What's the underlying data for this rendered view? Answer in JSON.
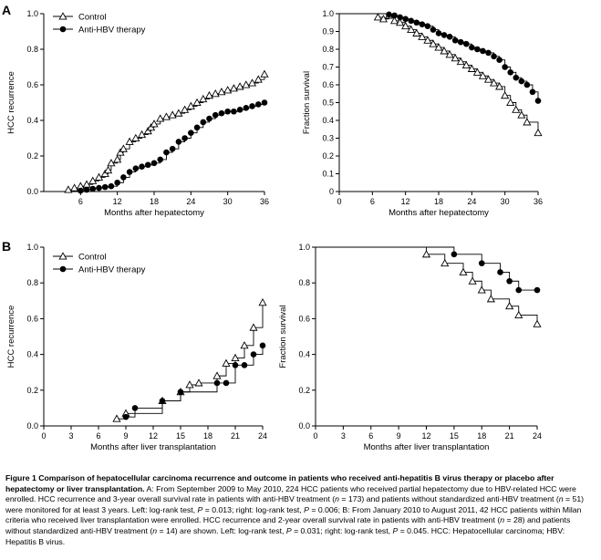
{
  "figure": {
    "panel_letters": [
      "A",
      "B"
    ],
    "caption": {
      "title": "Figure 1  Comparison of hepatocellular carcinoma recurrence and outcome in patients who received anti-hepatitis B virus therapy or placebo after hepatectomy or liver transplantation.",
      "body_html": " A: From September 2009 to May 2010, 224 HCC patients who received partial hepatectomy due to HBV-related HCC were enrolled. HCC recurrence and 3-year overall survival rate in patients with anti-HBV treatment (<i>n</i> = 173) and patients without standardized anti-HBV treatment (<i>n</i> = 51) were monitored for at least 3 years. Left: log-rank test, <i>P</i> = 0.013; right: log-rank test, <i>P</i> = 0.006; B: From January 2010 to August 2011, 42 HCC patients within Milan criteria who received liver transplantation were enrolled. HCC recurrence and 2-year overall survival rate in patients with anti-HBV treatment (<i>n</i> = 28) and patients without standardized anti-HBV treatment (<i>n</i> = 14) are shown. Left: log-rank test, <i>P</i> = 0.031; right: log-rank test, <i>P</i> = 0.045. HCC: Hepatocellular carcinoma; HBV: Hepatitis B virus."
    }
  },
  "chart_data": [
    {
      "id": "A-left",
      "type": "line",
      "step": true,
      "xlabel": "Months after hepatectomy",
      "ylabel": "HCC recurrence",
      "xlim": [
        0,
        36
      ],
      "ylim": [
        0,
        1.0
      ],
      "xticks": [
        6,
        12,
        18,
        24,
        30,
        36
      ],
      "yticks": [
        0.0,
        0.2,
        0.4,
        0.6,
        0.8,
        1.0
      ],
      "xtick_labels": [
        "6",
        "12",
        "18",
        "24",
        "30",
        "36"
      ],
      "ytick_labels": [
        "0.0",
        "0.2",
        "0.4",
        "0.6",
        "0.8",
        "1.0"
      ],
      "legend": [
        "Control",
        "Anti-HBV therapy"
      ],
      "series": [
        {
          "name": "Control",
          "marker": "open-triangle",
          "points": [
            [
              4,
              0.01
            ],
            [
              5,
              0.02
            ],
            [
              6,
              0.03
            ],
            [
              7,
              0.04
            ],
            [
              8,
              0.06
            ],
            [
              9,
              0.08
            ],
            [
              10,
              0.1
            ],
            [
              10.5,
              0.12
            ],
            [
              11,
              0.16
            ],
            [
              12,
              0.18
            ],
            [
              12.5,
              0.22
            ],
            [
              13,
              0.24
            ],
            [
              14,
              0.28
            ],
            [
              15,
              0.3
            ],
            [
              16,
              0.32
            ],
            [
              17,
              0.34
            ],
            [
              17.5,
              0.36
            ],
            [
              18,
              0.38
            ],
            [
              19,
              0.41
            ],
            [
              20,
              0.42
            ],
            [
              21,
              0.43
            ],
            [
              22,
              0.44
            ],
            [
              23,
              0.46
            ],
            [
              24,
              0.48
            ],
            [
              25,
              0.5
            ],
            [
              26,
              0.52
            ],
            [
              27,
              0.54
            ],
            [
              28,
              0.55
            ],
            [
              29,
              0.56
            ],
            [
              30,
              0.57
            ],
            [
              31,
              0.58
            ],
            [
              32,
              0.59
            ],
            [
              33,
              0.6
            ],
            [
              34,
              0.61
            ],
            [
              35,
              0.63
            ],
            [
              36,
              0.66
            ]
          ]
        },
        {
          "name": "Anti-HBV therapy",
          "marker": "filled-circle",
          "points": [
            [
              6,
              0.005
            ],
            [
              7,
              0.01
            ],
            [
              8,
              0.015
            ],
            [
              9,
              0.02
            ],
            [
              10,
              0.025
            ],
            [
              11,
              0.03
            ],
            [
              12,
              0.05
            ],
            [
              13,
              0.08
            ],
            [
              14,
              0.11
            ],
            [
              15,
              0.13
            ],
            [
              16,
              0.14
            ],
            [
              17,
              0.15
            ],
            [
              18,
              0.16
            ],
            [
              19,
              0.18
            ],
            [
              20,
              0.22
            ],
            [
              21,
              0.24
            ],
            [
              22,
              0.28
            ],
            [
              23,
              0.3
            ],
            [
              24,
              0.33
            ],
            [
              25,
              0.36
            ],
            [
              26,
              0.39
            ],
            [
              27,
              0.41
            ],
            [
              28,
              0.43
            ],
            [
              29,
              0.44
            ],
            [
              30,
              0.45
            ],
            [
              31,
              0.45
            ],
            [
              32,
              0.46
            ],
            [
              33,
              0.47
            ],
            [
              34,
              0.48
            ],
            [
              35,
              0.49
            ],
            [
              36,
              0.5
            ]
          ]
        }
      ]
    },
    {
      "id": "A-right",
      "type": "line",
      "step": true,
      "xlabel": "Months after hepatectomy",
      "ylabel": "Fraction survival",
      "xlim": [
        0,
        36
      ],
      "ylim": [
        0,
        1.0
      ],
      "xticks": [
        0,
        6,
        12,
        18,
        24,
        30,
        36
      ],
      "yticks": [
        0,
        0.1,
        0.2,
        0.3,
        0.4,
        0.5,
        0.6,
        0.7,
        0.8,
        0.9,
        1.0
      ],
      "xtick_labels": [
        "0",
        "6",
        "12",
        "18",
        "24",
        "30",
        "36"
      ],
      "ytick_labels": [
        "0",
        "0.1",
        "0.2",
        "0.3",
        "0.4",
        "0.5",
        "0.6",
        "0.7",
        "0.8",
        "0.9",
        "1.0"
      ],
      "series": [
        {
          "name": "Control",
          "marker": "open-triangle",
          "start": 1.0,
          "points": [
            [
              7,
              0.98
            ],
            [
              8,
              0.97
            ],
            [
              9,
              0.99
            ],
            [
              10,
              0.96
            ],
            [
              11,
              0.95
            ],
            [
              12,
              0.93
            ],
            [
              13,
              0.91
            ],
            [
              14,
              0.89
            ],
            [
              15,
              0.87
            ],
            [
              16,
              0.85
            ],
            [
              17,
              0.83
            ],
            [
              18,
              0.81
            ],
            [
              19,
              0.79
            ],
            [
              20,
              0.77
            ],
            [
              21,
              0.75
            ],
            [
              22,
              0.73
            ],
            [
              23,
              0.71
            ],
            [
              24,
              0.69
            ],
            [
              25,
              0.67
            ],
            [
              26,
              0.65
            ],
            [
              27,
              0.63
            ],
            [
              28,
              0.61
            ],
            [
              29,
              0.59
            ],
            [
              30,
              0.54
            ],
            [
              31,
              0.5
            ],
            [
              32,
              0.46
            ],
            [
              33,
              0.43
            ],
            [
              34,
              0.39
            ],
            [
              36,
              0.33
            ]
          ]
        },
        {
          "name": "Anti-HBV therapy",
          "marker": "filled-circle",
          "start": 1.0,
          "points": [
            [
              9,
              0.995
            ],
            [
              10,
              0.99
            ],
            [
              11,
              0.98
            ],
            [
              12,
              0.97
            ],
            [
              13,
              0.96
            ],
            [
              14,
              0.95
            ],
            [
              15,
              0.94
            ],
            [
              16,
              0.93
            ],
            [
              17,
              0.91
            ],
            [
              18,
              0.89
            ],
            [
              19,
              0.88
            ],
            [
              20,
              0.87
            ],
            [
              21,
              0.85
            ],
            [
              22,
              0.84
            ],
            [
              23,
              0.83
            ],
            [
              24,
              0.81
            ],
            [
              25,
              0.8
            ],
            [
              26,
              0.79
            ],
            [
              27,
              0.78
            ],
            [
              28,
              0.76
            ],
            [
              29,
              0.74
            ],
            [
              30,
              0.7
            ],
            [
              31,
              0.67
            ],
            [
              32,
              0.64
            ],
            [
              33,
              0.62
            ],
            [
              34,
              0.6
            ],
            [
              35,
              0.56
            ],
            [
              36,
              0.51
            ]
          ]
        }
      ]
    },
    {
      "id": "B-left",
      "type": "line",
      "step": true,
      "xlabel": "Months after liver transplantation",
      "ylabel": "HCC recurrence",
      "xlim": [
        0,
        24
      ],
      "ylim": [
        0,
        1.0
      ],
      "xticks": [
        0,
        3,
        6,
        9,
        12,
        15,
        18,
        21,
        24
      ],
      "yticks": [
        0.0,
        0.2,
        0.4,
        0.6,
        0.8,
        1.0
      ],
      "xtick_labels": [
        "0",
        "3",
        "6",
        "9",
        "12",
        "15",
        "18",
        "21",
        "24"
      ],
      "ytick_labels": [
        "0.0",
        "0.2",
        "0.4",
        "0.6",
        "0.8",
        "1.0"
      ],
      "legend": [
        "Control",
        "Anti-HBV therapy"
      ],
      "series": [
        {
          "name": "Control",
          "marker": "open-triangle",
          "points": [
            [
              8,
              0.04
            ],
            [
              9,
              0.07
            ],
            [
              13,
              0.14
            ],
            [
              15,
              0.19
            ],
            [
              16,
              0.23
            ],
            [
              17,
              0.24
            ],
            [
              19,
              0.28
            ],
            [
              20,
              0.35
            ],
            [
              21,
              0.38
            ],
            [
              22,
              0.45
            ],
            [
              23,
              0.55
            ],
            [
              24,
              0.69
            ]
          ]
        },
        {
          "name": "Anti-HBV therapy",
          "marker": "filled-circle",
          "points": [
            [
              9,
              0.05
            ],
            [
              10,
              0.1
            ],
            [
              13,
              0.14
            ],
            [
              15,
              0.19
            ],
            [
              19,
              0.24
            ],
            [
              20,
              0.24
            ],
            [
              21,
              0.34
            ],
            [
              22,
              0.34
            ],
            [
              23,
              0.4
            ],
            [
              24,
              0.45
            ]
          ]
        }
      ]
    },
    {
      "id": "B-right",
      "type": "line",
      "step": true,
      "xlabel": "Months after liver transplantation",
      "ylabel": "Fraction survival",
      "xlim": [
        0,
        24
      ],
      "ylim": [
        0,
        1.0
      ],
      "xticks": [
        0,
        3,
        6,
        9,
        12,
        15,
        18,
        21,
        24
      ],
      "yticks": [
        0.0,
        0.2,
        0.4,
        0.6,
        0.8,
        1.0
      ],
      "xtick_labels": [
        "0",
        "3",
        "6",
        "9",
        "12",
        "15",
        "18",
        "21",
        "24"
      ],
      "ytick_labels": [
        "0.0",
        "0.2",
        "0.4",
        "0.6",
        "0.8",
        "1.0"
      ],
      "series": [
        {
          "name": "Control",
          "marker": "open-triangle",
          "start": 1.0,
          "points": [
            [
              12,
              0.96
            ],
            [
              14,
              0.91
            ],
            [
              16,
              0.86
            ],
            [
              17,
              0.81
            ],
            [
              18,
              0.76
            ],
            [
              19,
              0.71
            ],
            [
              21,
              0.67
            ],
            [
              22,
              0.62
            ],
            [
              24,
              0.57
            ]
          ]
        },
        {
          "name": "Anti-HBV therapy",
          "marker": "filled-circle",
          "start": 1.0,
          "points": [
            [
              15,
              0.96
            ],
            [
              18,
              0.91
            ],
            [
              20,
              0.86
            ],
            [
              21,
              0.81
            ],
            [
              22,
              0.76
            ],
            [
              24,
              0.76
            ]
          ]
        }
      ]
    }
  ]
}
